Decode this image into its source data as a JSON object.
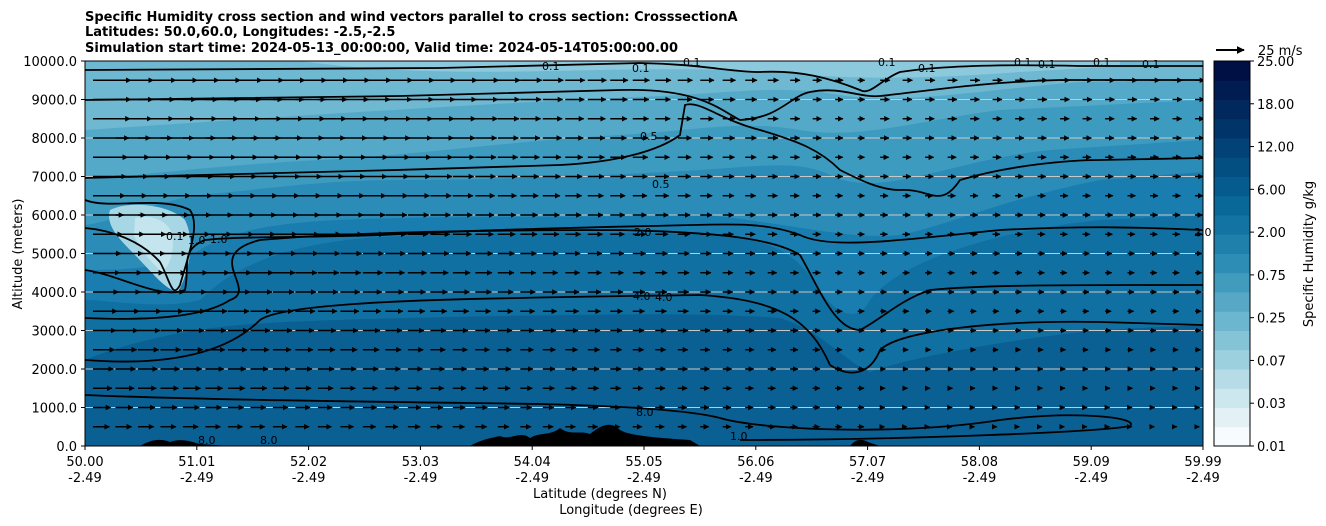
{
  "chart_data": {
    "type": "heatmap",
    "title_lines": [
      "Specific Humidity cross section and wind vectors parallel to cross section: CrosssectionA",
      "Latitudes: 50.0,60.0, Longitudes: -2.5,-2.5",
      "Simulation start time: 2024-05-13_00:00:00, Valid time: 2024-05-14T05:00:00.00"
    ],
    "ylabel": "Altitude (meters)",
    "xlabel_lines": [
      "Latitude (degrees N)",
      "Longitude (degrees E)"
    ],
    "ylim": [
      0,
      10000
    ],
    "y_ticks": [
      "0.0",
      "1000.0",
      "2000.0",
      "3000.0",
      "4000.0",
      "5000.0",
      "6000.0",
      "7000.0",
      "8000.0",
      "9000.0",
      "10000.0"
    ],
    "y_tick_values": [
      0,
      1000,
      2000,
      3000,
      4000,
      5000,
      6000,
      7000,
      8000,
      9000,
      10000
    ],
    "x_ticks": [
      {
        "lat": "50.00",
        "lon": "-2.49"
      },
      {
        "lat": "51.01",
        "lon": "-2.49"
      },
      {
        "lat": "52.02",
        "lon": "-2.49"
      },
      {
        "lat": "53.03",
        "lon": "-2.49"
      },
      {
        "lat": "54.04",
        "lon": "-2.49"
      },
      {
        "lat": "55.05",
        "lon": "-2.49"
      },
      {
        "lat": "56.06",
        "lon": "-2.49"
      },
      {
        "lat": "57.07",
        "lon": "-2.49"
      },
      {
        "lat": "58.08",
        "lon": "-2.49"
      },
      {
        "lat": "59.09",
        "lon": "-2.49"
      },
      {
        "lat": "59.99",
        "lon": "-2.49"
      }
    ],
    "colorbar": {
      "label": "Specific Humidity g/kg",
      "ticks": [
        "0.01",
        "0.03",
        "0.07",
        "0.25",
        "0.75",
        "2.00",
        "6.00",
        "12.00",
        "18.00",
        "25.00"
      ],
      "colors": [
        "#f7fbfd",
        "#e3f1f5",
        "#cce7ee",
        "#b5dce7",
        "#9dd0df",
        "#85c3d7",
        "#6db6cf",
        "#56a8c6",
        "#409bbd",
        "#2d8db4",
        "#1e80ab",
        "#1174a3",
        "#0a6899",
        "#065b8e",
        "#034f82",
        "#024276",
        "#01356a",
        "#01295e",
        "#001c51",
        "#001045"
      ]
    },
    "contour_labels": [
      "0.1",
      "0.1",
      "0.1",
      "0.1",
      "0.1",
      "0.1",
      "0.1",
      "0.1",
      "0.1",
      "0.5",
      "0.5",
      "1.0",
      "2.0",
      "2.0",
      "4.0",
      "4.0",
      "8.0",
      "8.0",
      "8.0",
      "0.1",
      "1.0",
      "1.0"
    ],
    "wind_reference": "25 m/s",
    "grid": true
  }
}
